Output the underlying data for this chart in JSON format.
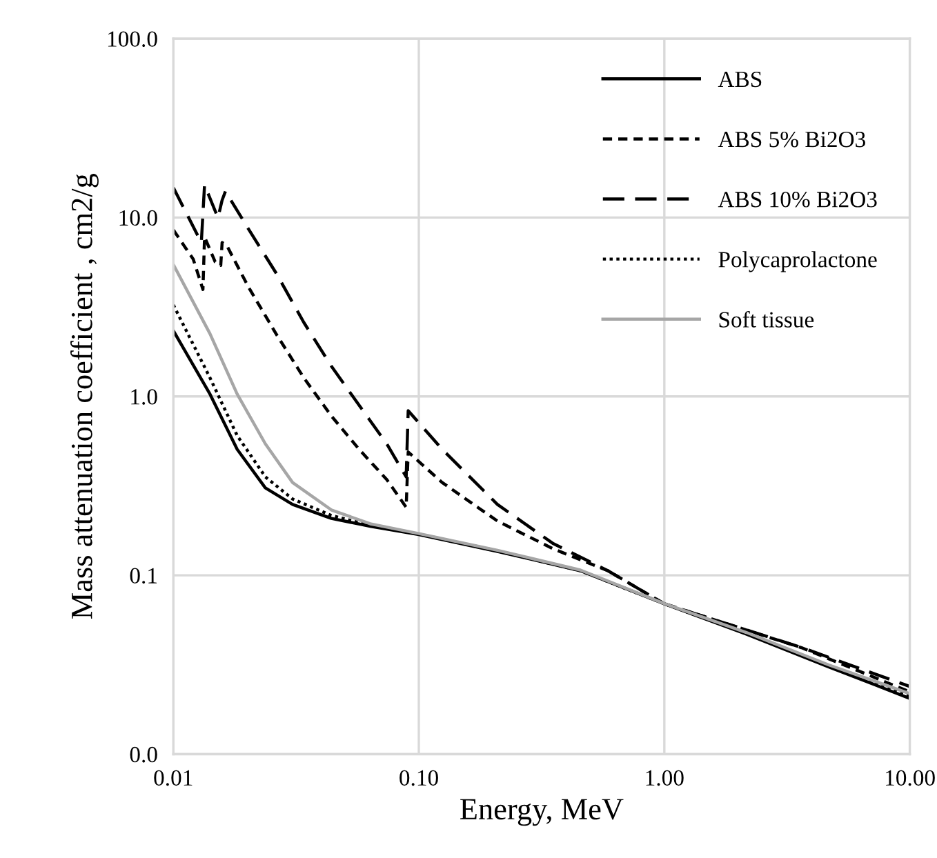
{
  "chart_data": {
    "type": "line",
    "xlabel": "Energy, MeV",
    "ylabel": "Mass attenuation coefficient , cm2/g",
    "log": "xy",
    "grid": true,
    "legend": "top right",
    "xlim": [
      0.01,
      10
    ],
    "xticks": [
      {
        "value": 0.01,
        "label": "0.01"
      },
      {
        "value": 0.1,
        "label": "0.10"
      },
      {
        "value": 1,
        "label": "1.00"
      },
      {
        "value": 10,
        "label": "10.00"
      }
    ],
    "ylim": [
      0.01,
      100
    ],
    "yticks": [
      {
        "value": 0.01,
        "label": "0.0"
      },
      {
        "value": 0.1,
        "label": "0.1"
      },
      {
        "value": 1,
        "label": "1.0"
      },
      {
        "value": 10,
        "label": "10.0"
      },
      {
        "value": 100,
        "label": "100.0"
      }
    ],
    "series": [
      {
        "name": "ABS",
        "color": "#000000",
        "line_style": "solid",
        "x": [
          0.01,
          0.0141,
          0.0182,
          0.0237,
          0.0306,
          0.044,
          0.0634,
          0.1,
          0.209,
          0.455,
          1,
          2.15,
          4.69,
          10
        ],
        "values": [
          2.33,
          1.03,
          0.506,
          0.308,
          0.249,
          0.208,
          0.188,
          0.169,
          0.136,
          0.106,
          0.0693,
          0.047,
          0.0307,
          0.0205
        ]
      },
      {
        "name": "ABS 5% Bi2O3",
        "color": "#000000",
        "line_style": "dashed",
        "x": [
          0.01,
          0.01205,
          0.0132,
          0.0134,
          0.0148,
          0.0156,
          0.0158,
          0.0165,
          0.0202,
          0.0262,
          0.034,
          0.0441,
          0.0571,
          0.074,
          0.0888,
          0.0905,
          0.1245,
          0.209,
          0.351,
          0.589,
          1,
          3.62,
          10
        ],
        "values": [
          8.53,
          5.85,
          3.96,
          7.78,
          5.65,
          5.4,
          7.24,
          6.98,
          4.1,
          2.24,
          1.27,
          0.775,
          0.506,
          0.343,
          0.24,
          0.489,
          0.33,
          0.201,
          0.141,
          0.106,
          0.0693,
          0.0394,
          0.0223
        ]
      },
      {
        "name": "ABS 10% Bi2O3",
        "color": "#000000",
        "line_style": "longdash",
        "x": [
          0.01,
          0.013,
          0.0134,
          0.0152,
          0.0158,
          0.0163,
          0.0202,
          0.0262,
          0.034,
          0.0441,
          0.0571,
          0.074,
          0.0888,
          0.0905,
          0.1245,
          0.209,
          0.351,
          0.589,
          1,
          3.62,
          10
        ],
        "values": [
          14.7,
          7.24,
          15.2,
          9.96,
          12.5,
          14.0,
          8.65,
          4.9,
          2.59,
          1.47,
          0.893,
          0.543,
          0.355,
          0.832,
          0.506,
          0.249,
          0.151,
          0.106,
          0.0693,
          0.0395,
          0.0239
        ]
      },
      {
        "name": "Polycaprolactone",
        "color": "#000000",
        "line_style": "dotted",
        "x": [
          0.01,
          0.0141,
          0.0182,
          0.0237,
          0.0306,
          0.044,
          0.0634,
          0.1,
          0.209,
          0.455,
          1,
          2.15,
          4.69,
          10
        ],
        "values": [
          3.25,
          1.27,
          0.604,
          0.355,
          0.267,
          0.216,
          0.19,
          0.17,
          0.137,
          0.106,
          0.0693,
          0.0475,
          0.031,
          0.021
        ]
      },
      {
        "name": "Soft tissue",
        "color": "#a6a6a6",
        "line_style": "solid",
        "x": [
          0.01,
          0.0141,
          0.0182,
          0.0237,
          0.0306,
          0.044,
          0.0634,
          0.1,
          0.209,
          0.455,
          1,
          2.15,
          4.69,
          10
        ],
        "values": [
          5.46,
          2.24,
          1.03,
          0.543,
          0.33,
          0.232,
          0.194,
          0.171,
          0.138,
          0.107,
          0.0695,
          0.048,
          0.0315,
          0.0218
        ]
      }
    ]
  }
}
